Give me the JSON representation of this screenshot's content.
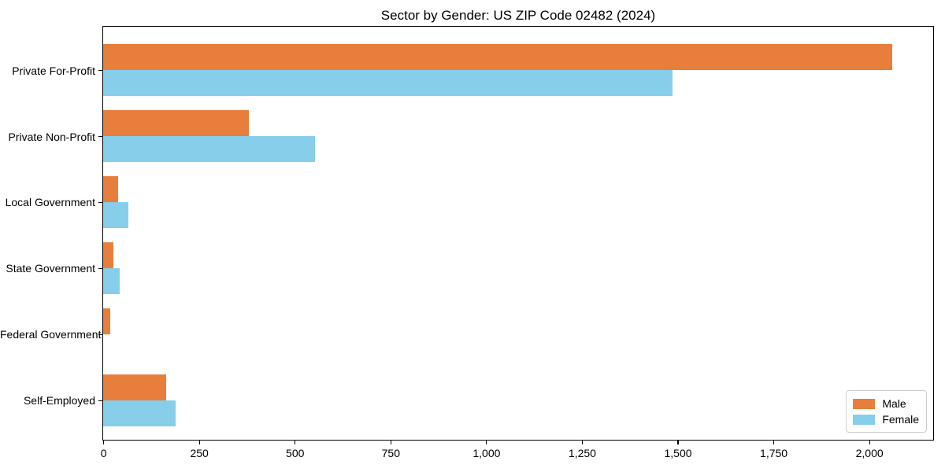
{
  "chart_data": {
    "type": "bar",
    "orientation": "horizontal",
    "title": "Sector by Gender: US ZIP Code 02482 (2024)",
    "categories": [
      "Private For-Profit",
      "Private Non-Profit",
      "Local Government",
      "State Government",
      "Federal Government",
      "Self-Employed"
    ],
    "series": [
      {
        "name": "Male",
        "color": "#E87E3B",
        "values": [
          2060,
          380,
          39,
          27,
          18,
          165
        ]
      },
      {
        "name": "Female",
        "color": "#87CEEB",
        "values": [
          1487,
          554,
          65,
          43,
          0,
          190
        ]
      }
    ],
    "xlabel": "",
    "ylabel": "",
    "xlim": [
      0,
      2165
    ],
    "xticks": {
      "values": [
        0,
        250,
        500,
        750,
        1000,
        1250,
        1500,
        1750,
        2000
      ],
      "labels": [
        "0",
        "250",
        "500",
        "750",
        "1,000",
        "1,250",
        "1,500",
        "1,750",
        "2,000"
      ]
    },
    "grid": false,
    "legend": {
      "position": "lower right",
      "items": [
        "Male",
        "Female"
      ]
    },
    "colors": {
      "background": "#ffffff",
      "spine": "#000000",
      "text": "#000000",
      "legend_border": "#cccccc"
    }
  }
}
